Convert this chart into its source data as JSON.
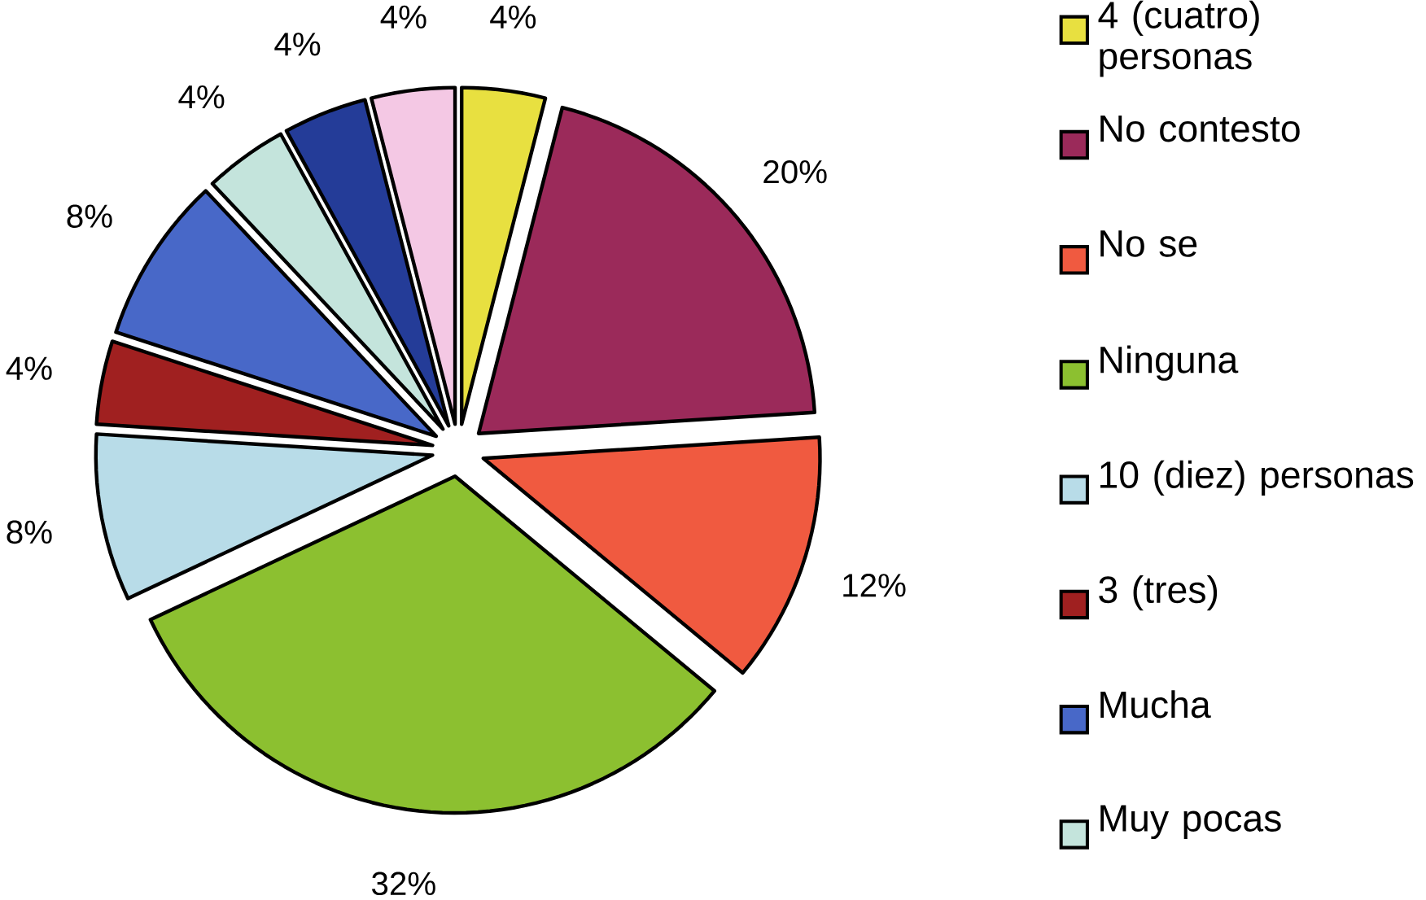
{
  "chart_data": {
    "type": "pie",
    "categories": [
      "4 (cuatro) personas",
      "No contesto",
      "No se",
      "Ninguna",
      "10 (diez) personas",
      "3 (tres)",
      "Mucha",
      "Muy pocas",
      null,
      null
    ],
    "values": [
      4,
      20,
      12,
      32,
      8,
      4,
      8,
      4,
      4,
      4
    ],
    "value_labels": [
      "4%",
      "20%",
      "12%",
      "32%",
      "8%",
      "4%",
      "8%",
      "4%",
      "4%",
      "4%"
    ],
    "colors": [
      "#e8e040",
      "#9b2a5a",
      "#f05a40",
      "#8cc030",
      "#b8dce8",
      "#a02020",
      "#4868c8",
      "#c4e4dc",
      "#243c98",
      "#f4c8e4"
    ],
    "legend": "right"
  }
}
